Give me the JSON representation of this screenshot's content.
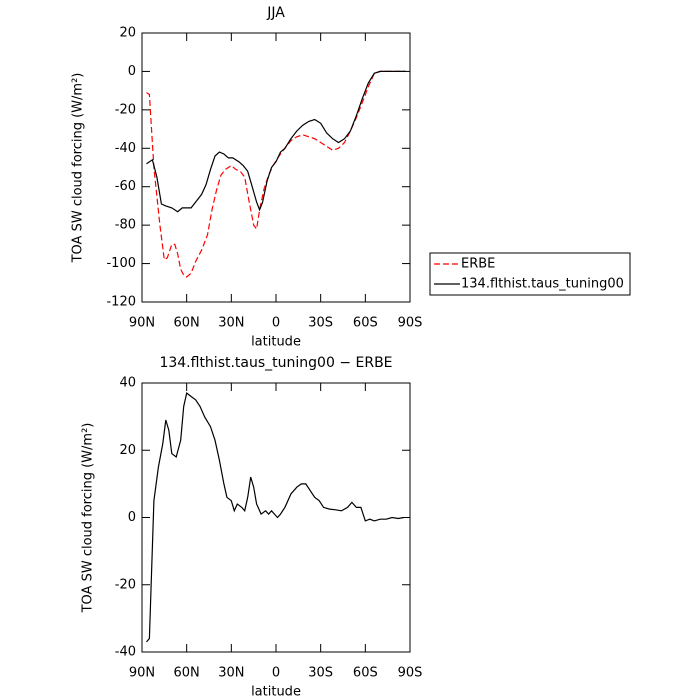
{
  "chart_data": [
    {
      "type": "line",
      "title": "JJA",
      "xlabel": "latitude",
      "ylabel": "TOA SW cloud forcing (W/m²)",
      "xlim": [
        90,
        -90
      ],
      "xticks": [
        {
          "value": 90,
          "label": "90N"
        },
        {
          "value": 60,
          "label": "60N"
        },
        {
          "value": 30,
          "label": "30N"
        },
        0,
        {
          "value": -30,
          "label": "30S"
        },
        {
          "value": -60,
          "label": "60S"
        },
        {
          "value": -90,
          "label": "90S"
        }
      ],
      "ylim": [
        -120,
        20
      ],
      "yticks": [
        20,
        0,
        -20,
        -40,
        -60,
        -80,
        -100,
        -120
      ],
      "legend": "right",
      "series": [
        {
          "name": "ERBE",
          "color": "#ff0000",
          "style": "dashed",
          "x": [
            87,
            85,
            82,
            78,
            75,
            73,
            70,
            68,
            66,
            64,
            62,
            60,
            57,
            54,
            50,
            46,
            43,
            40,
            37,
            34,
            30,
            27,
            24,
            21,
            18,
            15,
            13,
            11,
            8,
            5,
            2,
            -2,
            -6,
            -10,
            -14,
            -18,
            -22,
            -26,
            -30,
            -34,
            -38,
            -42,
            -46,
            -50,
            -54,
            -58,
            -62,
            -66,
            -70,
            -75,
            -80,
            -85,
            -87
          ],
          "values": [
            -11,
            -12,
            -50,
            -80,
            -98,
            -97,
            -90,
            -90,
            -95,
            -103,
            -106,
            -107,
            -105,
            -99,
            -93,
            -85,
            -72,
            -62,
            -54,
            -51,
            -49,
            -51,
            -52,
            -55,
            -68,
            -80,
            -82,
            -72,
            -61,
            -54,
            -49,
            -44,
            -40,
            -36,
            -34,
            -33,
            -34,
            -35,
            -37,
            -39,
            -41,
            -40,
            -37,
            -31,
            -24,
            -16,
            -8,
            -1,
            0,
            0,
            0,
            0,
            0
          ]
        },
        {
          "name": "134.flthist.taus_tuning00",
          "color": "#000000",
          "style": "solid",
          "x": [
            87,
            83,
            80,
            77,
            74,
            70,
            66,
            63,
            60,
            57,
            54,
            50,
            47,
            44,
            41,
            38,
            35,
            32,
            29,
            25,
            22,
            19,
            16,
            13,
            11,
            9,
            6,
            3,
            0,
            -3,
            -6,
            -10,
            -14,
            -18,
            -22,
            -26,
            -30,
            -34,
            -38,
            -42,
            -46,
            -50,
            -54,
            -58,
            -62,
            -66,
            -70,
            -75,
            -80,
            -85,
            -87
          ],
          "values": [
            -48,
            -46,
            -55,
            -69,
            -70,
            -71,
            -73,
            -71,
            -71,
            -71,
            -68,
            -64,
            -59,
            -51,
            -44,
            -42,
            -43,
            -45,
            -45,
            -47,
            -49,
            -52,
            -60,
            -68,
            -72,
            -68,
            -57,
            -50,
            -47,
            -42,
            -40,
            -35,
            -31,
            -28,
            -26,
            -25,
            -27,
            -32,
            -35,
            -37,
            -35,
            -31,
            -23,
            -14,
            -6,
            -1,
            0,
            0,
            0,
            0,
            0
          ]
        }
      ]
    },
    {
      "type": "line",
      "title": "134.flthist.taus_tuning00 − ERBE",
      "xlabel": "latitude",
      "ylabel": "TOA SW cloud forcing (W/m²)",
      "xlim": [
        90,
        -90
      ],
      "xticks": [
        {
          "value": 90,
          "label": "90N"
        },
        {
          "value": 60,
          "label": "60N"
        },
        {
          "value": 30,
          "label": "30N"
        },
        0,
        {
          "value": -30,
          "label": "30S"
        },
        {
          "value": -60,
          "label": "60S"
        },
        {
          "value": -90,
          "label": "90S"
        }
      ],
      "ylim": [
        -40,
        40
      ],
      "yticks": [
        40,
        20,
        0,
        -20,
        -40
      ],
      "series": [
        {
          "color": "#000000",
          "style": "solid",
          "x": [
            87,
            85,
            82,
            79,
            76,
            74,
            72,
            70,
            67,
            64,
            62,
            60,
            57,
            54,
            51,
            48,
            44,
            41,
            38,
            35,
            33,
            30,
            28,
            26,
            23,
            21,
            19,
            17,
            15,
            13,
            10,
            7,
            5,
            3,
            1,
            -1,
            -3,
            -6,
            -10,
            -14,
            -17,
            -20,
            -23,
            -26,
            -29,
            -32,
            -36,
            -40,
            -44,
            -48,
            -51,
            -54,
            -57,
            -60,
            -63,
            -66,
            -70,
            -74,
            -78,
            -82,
            -86
          ],
          "values": [
            -37,
            -36,
            5,
            15,
            22,
            29,
            26,
            19,
            18,
            23,
            33,
            37,
            36,
            35,
            33,
            30,
            27,
            23,
            17,
            10,
            6,
            5,
            2,
            4,
            3,
            2,
            6,
            12,
            9,
            4,
            1,
            2,
            1,
            2,
            1,
            0,
            1,
            3,
            7,
            9,
            10,
            10,
            8,
            6,
            5,
            3,
            2.5,
            2.3,
            2,
            3,
            4.5,
            3,
            3,
            -1,
            -0.5,
            -1,
            -0.5,
            -0.5,
            0,
            -0.3,
            0
          ]
        }
      ]
    }
  ]
}
